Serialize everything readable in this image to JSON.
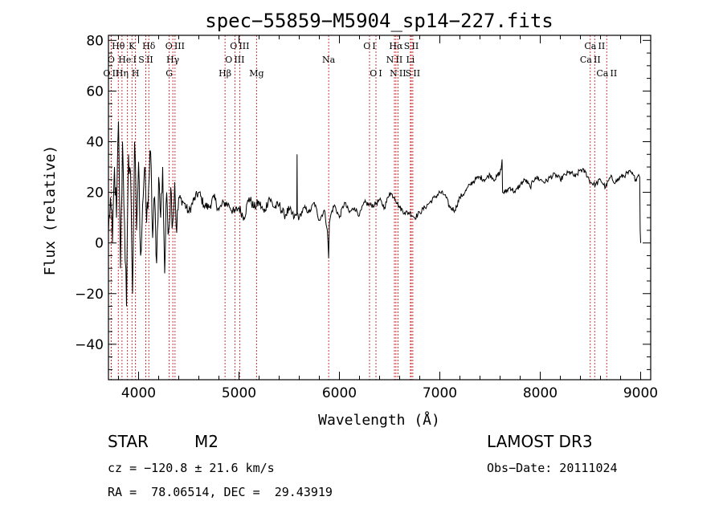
{
  "chart_data": {
    "type": "line",
    "title": "spec−55859−M5904_sp14−227.fits",
    "xlabel": "Wavelength (Å)",
    "ylabel": "Flux (relative)",
    "xlim": [
      3700,
      9100
    ],
    "ylim": [
      -54,
      82
    ],
    "xticks": [
      4000,
      5000,
      6000,
      7000,
      8000,
      9000
    ],
    "xtick_labels": [
      "4000",
      "5000",
      "6000",
      "7000",
      "8000",
      "9000"
    ],
    "yticks": [
      -40,
      -20,
      0,
      20,
      40,
      60,
      80
    ],
    "ytick_labels": [
      "−40",
      "−20",
      "0",
      "20",
      "40",
      "60",
      "80"
    ],
    "grid": false,
    "series": [
      {
        "name": "flux",
        "x": [
          3700,
          3720,
          3740,
          3760,
          3780,
          3800,
          3820,
          3840,
          3860,
          3880,
          3900,
          3920,
          3940,
          3960,
          3980,
          4000,
          4020,
          4040,
          4060,
          4080,
          4100,
          4120,
          4140,
          4160,
          4180,
          4200,
          4220,
          4240,
          4260,
          4280,
          4300,
          4320,
          4340,
          4360,
          4380,
          4400,
          4450,
          4500,
          4550,
          4600,
          4650,
          4700,
          4750,
          4800,
          4850,
          4900,
          4950,
          5000,
          5050,
          5100,
          5150,
          5200,
          5250,
          5300,
          5350,
          5400,
          5450,
          5500,
          5550,
          5575,
          5578,
          5581,
          5600,
          5650,
          5700,
          5750,
          5800,
          5850,
          5880,
          5893,
          5900,
          5920,
          5950,
          6000,
          6050,
          6100,
          6150,
          6200,
          6250,
          6300,
          6350,
          6400,
          6450,
          6500,
          6550,
          6600,
          6650,
          6700,
          6750,
          6800,
          6850,
          6900,
          6950,
          7000,
          7050,
          7100,
          7150,
          7200,
          7250,
          7300,
          7350,
          7400,
          7450,
          7500,
          7550,
          7600,
          7610,
          7620,
          7625,
          7650,
          7700,
          7750,
          7800,
          7850,
          7900,
          7950,
          8000,
          8050,
          8100,
          8150,
          8200,
          8250,
          8300,
          8350,
          8400,
          8450,
          8500,
          8550,
          8600,
          8650,
          8700,
          8750,
          8800,
          8850,
          8900,
          8950,
          8980,
          8990,
          8995,
          9000
        ],
        "values": [
          4,
          18,
          0,
          30,
          10,
          48,
          -10,
          40,
          8,
          -25,
          35,
          28,
          -20,
          40,
          5,
          32,
          -5,
          15,
          30,
          8,
          22,
          36,
          2,
          18,
          -8,
          26,
          10,
          30,
          -12,
          20,
          5,
          22,
          8,
          24,
          4,
          18,
          16,
          12,
          17,
          20,
          15,
          14,
          18,
          13,
          16,
          15,
          12,
          14,
          10,
          18,
          14,
          16,
          12,
          18,
          14,
          15,
          11,
          13,
          10,
          11,
          35,
          12,
          10,
          14,
          12,
          16,
          9,
          13,
          5,
          -6,
          8,
          12,
          15,
          10,
          16,
          12,
          14,
          11,
          16,
          15,
          15,
          17,
          14,
          20,
          18,
          14,
          12,
          12,
          10,
          12,
          14,
          16,
          18,
          20,
          19,
          14,
          13,
          18,
          20,
          23,
          25,
          26,
          25,
          27,
          25,
          28,
          29,
          33,
          20,
          20,
          22,
          20,
          23,
          25,
          22,
          26,
          25,
          24,
          26,
          27,
          25,
          27,
          28,
          26,
          29,
          28,
          24,
          23,
          25,
          22,
          26,
          24,
          26,
          27,
          28,
          25,
          27,
          26,
          5,
          0
        ]
      }
    ],
    "line_annotations": [
      {
        "label": "O II",
        "wavelength": 3727,
        "row": 3
      },
      {
        "label": "O",
        "wavelength": 3727,
        "row": 2
      },
      {
        "label": "Hθ",
        "wavelength": 3798,
        "row": 1
      },
      {
        "label": "Hη",
        "wavelength": 3835,
        "row": 3
      },
      {
        "label": "He I",
        "wavelength": 3889,
        "row": 2
      },
      {
        "label": "K",
        "wavelength": 3934,
        "row": 1
      },
      {
        "label": "H",
        "wavelength": 3969,
        "row": 3
      },
      {
        "label": "S II",
        "wavelength": 4072,
        "row": 2
      },
      {
        "label": "Hδ",
        "wavelength": 4102,
        "row": 1
      },
      {
        "label": "G",
        "wavelength": 4305,
        "row": 3
      },
      {
        "label": "Hγ",
        "wavelength": 4341,
        "row": 2
      },
      {
        "label": "O III",
        "wavelength": 4363,
        "row": 1
      },
      {
        "label": "Hβ",
        "wavelength": 4861,
        "row": 3
      },
      {
        "label": "O III",
        "wavelength": 4959,
        "row": 2
      },
      {
        "label": "O III",
        "wavelength": 5007,
        "row": 1
      },
      {
        "label": "Mg",
        "wavelength": 5175,
        "row": 3
      },
      {
        "label": "Na",
        "wavelength": 5893,
        "row": 2
      },
      {
        "label": "O I",
        "wavelength": 6300,
        "row": 1
      },
      {
        "label": "O I",
        "wavelength": 6364,
        "row": 3
      },
      {
        "label": "N II",
        "wavelength": 6548,
        "row": 2
      },
      {
        "label": "Hα",
        "wavelength": 6563,
        "row": 1
      },
      {
        "label": "N II",
        "wavelength": 6583,
        "row": 3
      },
      {
        "label": "Li",
        "wavelength": 6707,
        "row": 2
      },
      {
        "label": "S II",
        "wavelength": 6716,
        "row": 1
      },
      {
        "label": "S II",
        "wavelength": 6731,
        "row": 3
      },
      {
        "label": "Ca II",
        "wavelength": 8498,
        "row": 2
      },
      {
        "label": "Ca II",
        "wavelength": 8542,
        "row": 1
      },
      {
        "label": "Ca II",
        "wavelength": 8662,
        "row": 3
      }
    ],
    "colors": {
      "line": "#000000",
      "marker": "#cc2222",
      "axis": "#000000"
    }
  },
  "info": {
    "object_class": "STAR",
    "subclass": "M2",
    "survey": "LAMOST DR3",
    "cz": "cz = −120.8 ± 21.6 km/s",
    "obs_date": "Obs−Date: 20111024",
    "coords": "RA =  78.06514, DEC =  29.43919"
  }
}
